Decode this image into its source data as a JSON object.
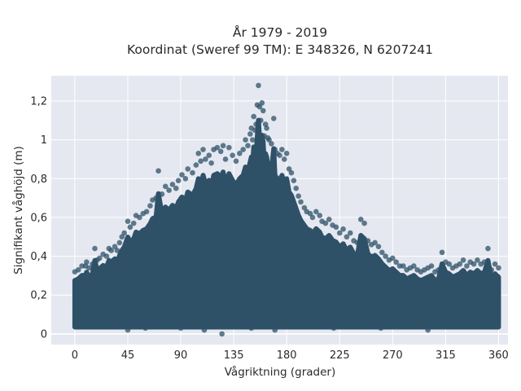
{
  "chart_data": {
    "type": "scatter",
    "title_lines": [
      "År 1979 - 2019",
      "Koordinat (Sweref 99 TM): E 348326, N 6207241"
    ],
    "xlabel": "Vågriktning (grader)",
    "ylabel": "Signifikant våghöjd (m)",
    "xlim": [
      -20,
      368
    ],
    "ylim": [
      -0.055,
      1.33
    ],
    "x_ticks": [
      0,
      45,
      90,
      135,
      180,
      225,
      270,
      315,
      360
    ],
    "x_tick_labels": [
      "0",
      "45",
      "90",
      "135",
      "180",
      "225",
      "270",
      "315",
      "360"
    ],
    "y_ticks": [
      0,
      0.2,
      0.4,
      0.6,
      0.8,
      1.0,
      1.2
    ],
    "y_tick_labels": [
      "0",
      "0,2",
      "0,4",
      "0,6",
      "0,8",
      "1",
      "1,2"
    ],
    "grid": true,
    "legend": "none",
    "colors": {
      "marker": "#2e5168",
      "plot_bg": "#e5e8f0",
      "grid": "#ffffff"
    },
    "series": [
      {
        "points": [
          [
            0,
            0.32
          ],
          [
            3,
            0.33
          ],
          [
            6,
            0.35
          ],
          [
            9,
            0.35
          ],
          [
            10,
            0.37
          ],
          [
            12,
            0.34
          ],
          [
            15,
            0.36
          ],
          [
            17,
            0.44
          ],
          [
            19,
            0.38
          ],
          [
            21,
            0.39
          ],
          [
            24,
            0.41
          ],
          [
            27,
            0.4
          ],
          [
            29,
            0.44
          ],
          [
            31,
            0.43
          ],
          [
            34,
            0.45
          ],
          [
            36,
            0.43
          ],
          [
            38,
            0.47
          ],
          [
            40,
            0.5
          ],
          [
            42,
            0.52
          ],
          [
            45,
            0.58
          ],
          [
            47,
            0.55
          ],
          [
            50,
            0.57
          ],
          [
            52,
            0.61
          ],
          [
            55,
            0.6
          ],
          [
            58,
            0.62
          ],
          [
            61,
            0.63
          ],
          [
            64,
            0.66
          ],
          [
            66,
            0.69
          ],
          [
            69,
            0.7
          ],
          [
            71,
            0.84
          ],
          [
            74,
            0.72
          ],
          [
            77,
            0.76
          ],
          [
            80,
            0.74
          ],
          [
            83,
            0.77
          ],
          [
            86,
            0.75
          ],
          [
            88,
            0.79
          ],
          [
            91,
            0.82
          ],
          [
            94,
            0.8
          ],
          [
            96,
            0.85
          ],
          [
            100,
            0.83
          ],
          [
            103,
            0.87
          ],
          [
            105,
            0.93
          ],
          [
            107,
            0.89
          ],
          [
            109,
            0.95
          ],
          [
            111,
            0.9
          ],
          [
            114,
            0.92
          ],
          [
            116,
            0.88
          ],
          [
            118,
            0.95
          ],
          [
            121,
            0.96
          ],
          [
            124,
            0.94
          ],
          [
            126,
            0.97
          ],
          [
            128,
            0.9
          ],
          [
            131,
            0.96
          ],
          [
            134,
            0.92
          ],
          [
            137,
            0.89
          ],
          [
            140,
            0.93
          ],
          [
            143,
            0.95
          ],
          [
            145,
            1.0
          ],
          [
            147,
            0.97
          ],
          [
            149,
            1.03
          ],
          [
            150,
            1.06
          ],
          [
            151,
            1.0
          ],
          [
            152,
            1.12
          ],
          [
            153,
            1.05
          ],
          [
            154,
            1.08
          ],
          [
            155,
            1.18
          ],
          [
            156,
            1.28
          ],
          [
            157,
            1.17
          ],
          [
            158,
            1.1
          ],
          [
            159,
            1.19
          ],
          [
            160,
            1.15
          ],
          [
            161,
            1.02
          ],
          [
            162,
            1.08
          ],
          [
            163,
            1.06
          ],
          [
            164,
            1.01
          ],
          [
            165,
            1.0
          ],
          [
            167,
            0.98
          ],
          [
            169,
            1.11
          ],
          [
            170,
            0.95
          ],
          [
            172,
            0.93
          ],
          [
            174,
            0.92
          ],
          [
            176,
            0.95
          ],
          [
            178,
            0.9
          ],
          [
            180,
            0.93
          ],
          [
            182,
            0.85
          ],
          [
            184,
            0.83
          ],
          [
            186,
            0.79
          ],
          [
            188,
            0.75
          ],
          [
            190,
            0.71
          ],
          [
            192,
            0.68
          ],
          [
            195,
            0.65
          ],
          [
            197,
            0.63
          ],
          [
            200,
            0.62
          ],
          [
            202,
            0.6
          ],
          [
            205,
            0.63
          ],
          [
            208,
            0.61
          ],
          [
            210,
            0.58
          ],
          [
            213,
            0.57
          ],
          [
            216,
            0.59
          ],
          [
            219,
            0.56
          ],
          [
            222,
            0.55
          ],
          [
            225,
            0.52
          ],
          [
            228,
            0.54
          ],
          [
            231,
            0.5
          ],
          [
            234,
            0.52
          ],
          [
            237,
            0.48
          ],
          [
            240,
            0.47
          ],
          [
            243,
            0.59
          ],
          [
            246,
            0.57
          ],
          [
            249,
            0.48
          ],
          [
            252,
            0.46
          ],
          [
            255,
            0.47
          ],
          [
            258,
            0.45
          ],
          [
            261,
            0.42
          ],
          [
            264,
            0.4
          ],
          [
            267,
            0.38
          ],
          [
            270,
            0.39
          ],
          [
            273,
            0.37
          ],
          [
            276,
            0.35
          ],
          [
            279,
            0.35
          ],
          [
            282,
            0.33
          ],
          [
            285,
            0.34
          ],
          [
            288,
            0.35
          ],
          [
            291,
            0.33
          ],
          [
            294,
            0.32
          ],
          [
            297,
            0.33
          ],
          [
            300,
            0.34
          ],
          [
            303,
            0.35
          ],
          [
            306,
            0.32
          ],
          [
            309,
            0.33
          ],
          [
            312,
            0.42
          ],
          [
            315,
            0.37
          ],
          [
            318,
            0.36
          ],
          [
            321,
            0.34
          ],
          [
            324,
            0.35
          ],
          [
            327,
            0.36
          ],
          [
            330,
            0.38
          ],
          [
            333,
            0.35
          ],
          [
            336,
            0.37
          ],
          [
            339,
            0.36
          ],
          [
            342,
            0.38
          ],
          [
            345,
            0.36
          ],
          [
            348,
            0.37
          ],
          [
            351,
            0.44
          ],
          [
            354,
            0.33
          ],
          [
            357,
            0.36
          ],
          [
            360,
            0.34
          ],
          [
            20,
            0.04
          ],
          [
            45,
            0.02
          ],
          [
            60,
            0.03
          ],
          [
            90,
            0.03
          ],
          [
            110,
            0.02
          ],
          [
            125,
            0.0
          ],
          [
            150,
            0.03
          ],
          [
            170,
            0.02
          ],
          [
            195,
            0.04
          ],
          [
            220,
            0.03
          ],
          [
            260,
            0.03
          ],
          [
            300,
            0.02
          ],
          [
            330,
            0.04
          ],
          [
            358,
            0.05
          ]
        ]
      }
    ]
  }
}
